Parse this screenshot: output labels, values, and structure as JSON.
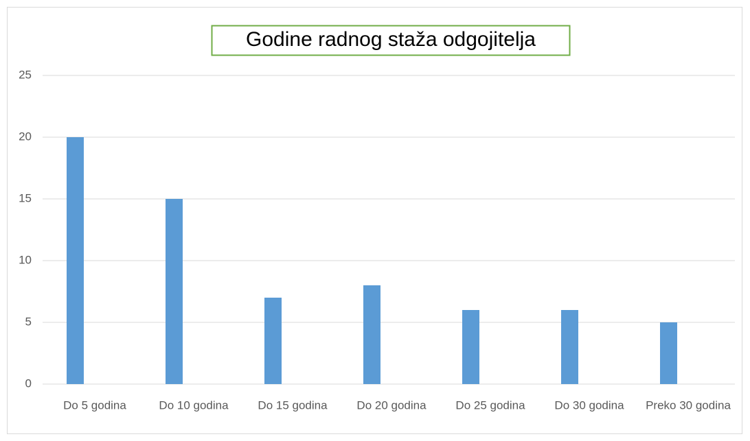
{
  "chart_data": {
    "type": "bar",
    "title": "Godine radnog staža odgojitelja",
    "categories": [
      "Do 5 godina",
      "Do 10 godina",
      "Do 15 godina",
      "Do 20 godina",
      "Do 25 godina",
      "Do 30 godina",
      "Preko 30 godina"
    ],
    "values": [
      20,
      15,
      7,
      8,
      6,
      6,
      5
    ],
    "color": "#5b9bd5",
    "ylim": [
      0,
      25
    ],
    "yticks": [
      0,
      5,
      10,
      15,
      20,
      25
    ],
    "grid": true
  }
}
